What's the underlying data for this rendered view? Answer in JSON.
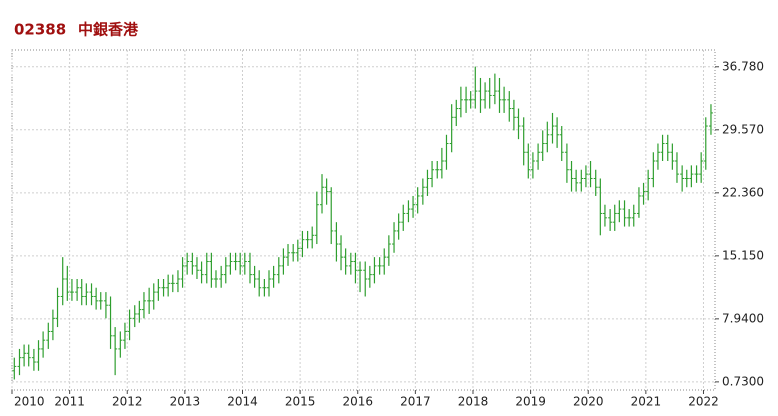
{
  "chart_data": {
    "type": "ohlc",
    "symbol": "02388",
    "name": "中銀香港",
    "color": "#2e9e2e",
    "grid": true,
    "xlim": [
      2010.0,
      2022.2
    ],
    "xticks": [
      2010,
      2011,
      2012,
      2013,
      2014,
      2015,
      2016,
      2017,
      2018,
      2019,
      2020,
      2021,
      2022
    ],
    "ylim": [
      -0.2,
      38.7
    ],
    "yticks": [
      {
        "value": 0.73,
        "label": "0.7300"
      },
      {
        "value": 7.94,
        "label": "7.9400"
      },
      {
        "value": 15.15,
        "label": "15.150"
      },
      {
        "value": 22.36,
        "label": "22.360"
      },
      {
        "value": 29.57,
        "label": "29.570"
      },
      {
        "value": 36.78,
        "label": "36.780"
      }
    ],
    "x": [
      2010.04,
      2010.13,
      2010.21,
      2010.29,
      2010.38,
      2010.46,
      2010.54,
      2010.63,
      2010.71,
      2010.79,
      2010.88,
      2010.96,
      2011.04,
      2011.13,
      2011.21,
      2011.29,
      2011.38,
      2011.46,
      2011.54,
      2011.63,
      2011.71,
      2011.79,
      2011.88,
      2011.96,
      2012.04,
      2012.13,
      2012.21,
      2012.29,
      2012.38,
      2012.46,
      2012.54,
      2012.63,
      2012.71,
      2012.79,
      2012.88,
      2012.96,
      2013.04,
      2013.13,
      2013.21,
      2013.29,
      2013.38,
      2013.46,
      2013.54,
      2013.63,
      2013.71,
      2013.79,
      2013.88,
      2013.96,
      2014.04,
      2014.13,
      2014.21,
      2014.29,
      2014.38,
      2014.46,
      2014.54,
      2014.63,
      2014.71,
      2014.79,
      2014.88,
      2014.96,
      2015.04,
      2015.13,
      2015.21,
      2015.29,
      2015.38,
      2015.46,
      2015.54,
      2015.63,
      2015.71,
      2015.79,
      2015.88,
      2015.96,
      2016.04,
      2016.13,
      2016.21,
      2016.29,
      2016.38,
      2016.46,
      2016.54,
      2016.63,
      2016.71,
      2016.79,
      2016.88,
      2016.96,
      2017.04,
      2017.13,
      2017.21,
      2017.29,
      2017.38,
      2017.46,
      2017.54,
      2017.63,
      2017.71,
      2017.79,
      2017.88,
      2017.96,
      2018.04,
      2018.13,
      2018.21,
      2018.29,
      2018.38,
      2018.46,
      2018.54,
      2018.63,
      2018.71,
      2018.79,
      2018.88,
      2018.96,
      2019.04,
      2019.13,
      2019.21,
      2019.29,
      2019.38,
      2019.46,
      2019.54,
      2019.63,
      2019.71,
      2019.79,
      2019.88,
      2019.96,
      2020.04,
      2020.13,
      2020.21,
      2020.29,
      2020.38,
      2020.46,
      2020.54,
      2020.63,
      2020.71,
      2020.79,
      2020.88,
      2020.96,
      2021.04,
      2021.13,
      2021.21,
      2021.29,
      2021.38,
      2021.46,
      2021.54,
      2021.63,
      2021.71,
      2021.79,
      2021.88,
      2021.96,
      2022.04,
      2022.13
    ],
    "open": [
      2.0,
      2.5,
      3.5,
      4.0,
      3.5,
      3.0,
      4.5,
      5.5,
      6.5,
      8.0,
      10.5,
      12.5,
      11.0,
      11.0,
      11.5,
      10.5,
      11.0,
      10.5,
      10.0,
      10.0,
      9.5,
      6.0,
      4.5,
      5.5,
      6.5,
      8.0,
      8.5,
      9.0,
      10.0,
      10.0,
      11.0,
      11.5,
      11.5,
      12.0,
      12.0,
      12.5,
      14.0,
      14.5,
      14.0,
      13.5,
      13.0,
      14.5,
      12.5,
      12.5,
      13.0,
      14.0,
      14.5,
      14.5,
      14.0,
      14.5,
      13.0,
      12.5,
      11.5,
      11.5,
      12.5,
      13.0,
      14.0,
      15.0,
      15.5,
      15.5,
      16.0,
      17.0,
      17.0,
      17.5,
      21.0,
      23.0,
      22.5,
      18.0,
      16.5,
      15.0,
      14.0,
      14.5,
      13.5,
      13.5,
      12.5,
      13.0,
      14.0,
      14.0,
      15.0,
      16.5,
      18.0,
      19.0,
      20.0,
      20.5,
      21.0,
      22.0,
      23.0,
      24.0,
      25.0,
      25.0,
      26.0,
      28.0,
      31.0,
      32.0,
      33.0,
      33.0,
      33.0,
      34.0,
      33.0,
      34.0,
      33.5,
      34.0,
      33.0,
      33.0,
      32.0,
      31.0,
      30.0,
      27.0,
      25.0,
      26.0,
      27.0,
      28.0,
      29.0,
      30.0,
      29.0,
      27.0,
      25.0,
      24.0,
      23.5,
      24.0,
      24.5,
      24.0,
      23.0,
      20.0,
      19.5,
      19.0,
      20.0,
      20.5,
      19.5,
      19.5,
      20.0,
      22.0,
      22.5,
      24.0,
      26.0,
      27.0,
      28.0,
      27.0,
      26.0,
      24.5,
      24.0,
      24.0,
      24.5,
      24.5,
      26.0,
      30.0
    ],
    "high": [
      3.5,
      4.5,
      5.0,
      5.0,
      4.5,
      5.5,
      6.5,
      7.5,
      9.0,
      11.5,
      15.0,
      14.0,
      12.5,
      12.5,
      12.5,
      12.0,
      12.0,
      11.5,
      11.0,
      11.0,
      10.5,
      7.0,
      6.5,
      7.5,
      9.0,
      9.5,
      10.0,
      11.0,
      11.5,
      12.0,
      12.5,
      12.5,
      13.0,
      13.0,
      13.5,
      15.0,
      15.5,
      15.5,
      15.0,
      14.5,
      15.5,
      15.5,
      13.5,
      14.0,
      15.0,
      15.5,
      15.5,
      15.5,
      15.5,
      15.5,
      14.0,
      13.5,
      12.5,
      13.5,
      14.0,
      15.0,
      16.0,
      16.5,
      16.5,
      17.0,
      18.0,
      18.0,
      18.5,
      22.5,
      24.5,
      24.0,
      23.0,
      19.0,
      17.5,
      16.0,
      15.5,
      15.5,
      14.5,
      14.5,
      14.0,
      15.0,
      15.0,
      16.0,
      17.5,
      19.0,
      20.0,
      21.0,
      21.5,
      22.0,
      23.0,
      24.0,
      25.0,
      26.0,
      26.0,
      27.5,
      29.0,
      32.5,
      33.0,
      34.5,
      34.5,
      34.0,
      36.8,
      35.5,
      35.0,
      35.5,
      36.0,
      35.5,
      34.5,
      34.0,
      33.0,
      32.0,
      31.0,
      28.0,
      27.0,
      28.0,
      29.5,
      30.5,
      31.5,
      31.0,
      30.0,
      28.0,
      26.0,
      25.0,
      25.0,
      25.5,
      26.0,
      25.0,
      24.0,
      21.0,
      20.5,
      21.0,
      21.5,
      21.5,
      20.5,
      21.0,
      23.0,
      23.5,
      25.0,
      27.0,
      28.0,
      29.0,
      29.0,
      28.0,
      27.0,
      25.5,
      25.0,
      25.5,
      25.5,
      27.0,
      31.0,
      32.5
    ],
    "low": [
      1.0,
      1.5,
      2.5,
      2.5,
      2.0,
      2.0,
      3.5,
      4.5,
      5.5,
      7.0,
      9.5,
      10.0,
      10.0,
      10.0,
      9.5,
      9.5,
      9.5,
      9.0,
      9.0,
      8.0,
      4.5,
      1.5,
      3.5,
      4.5,
      5.5,
      7.0,
      7.5,
      8.0,
      8.5,
      9.0,
      10.0,
      10.5,
      10.5,
      11.0,
      11.0,
      11.5,
      13.0,
      13.0,
      12.5,
      12.0,
      12.0,
      11.5,
      11.5,
      11.5,
      12.0,
      13.0,
      13.5,
      13.0,
      13.0,
      12.0,
      11.5,
      10.5,
      10.5,
      10.5,
      11.5,
      12.0,
      13.0,
      14.0,
      14.5,
      14.5,
      15.0,
      16.0,
      16.0,
      16.5,
      20.0,
      21.0,
      16.5,
      14.5,
      13.5,
      13.0,
      13.0,
      12.0,
      11.0,
      10.5,
      11.5,
      12.0,
      13.0,
      13.0,
      14.0,
      15.5,
      17.0,
      18.0,
      19.0,
      19.5,
      20.0,
      21.0,
      22.0,
      23.0,
      24.0,
      24.0,
      25.0,
      27.0,
      30.0,
      31.0,
      31.5,
      32.0,
      32.0,
      31.5,
      32.0,
      32.0,
      32.5,
      31.5,
      31.5,
      30.5,
      29.5,
      28.5,
      25.5,
      24.0,
      24.0,
      25.0,
      26.0,
      27.0,
      28.0,
      27.5,
      26.0,
      23.5,
      22.5,
      22.5,
      22.5,
      23.0,
      23.0,
      22.0,
      17.5,
      18.5,
      18.0,
      18.0,
      19.0,
      18.5,
      18.5,
      18.5,
      19.5,
      21.0,
      21.5,
      23.0,
      25.0,
      26.0,
      26.0,
      25.0,
      23.5,
      22.5,
      23.0,
      23.0,
      23.5,
      23.5,
      25.0,
      29.0
    ],
    "close": [
      2.5,
      3.5,
      4.0,
      3.5,
      3.0,
      4.5,
      5.5,
      6.5,
      8.0,
      10.5,
      12.5,
      11.0,
      11.0,
      11.5,
      10.5,
      11.0,
      10.5,
      10.0,
      10.0,
      9.5,
      6.0,
      4.5,
      5.5,
      6.5,
      8.0,
      8.5,
      9.0,
      10.0,
      10.0,
      11.0,
      11.5,
      11.5,
      12.0,
      12.0,
      12.5,
      14.0,
      14.5,
      14.0,
      13.5,
      13.0,
      14.5,
      12.5,
      12.5,
      13.0,
      14.0,
      14.5,
      14.5,
      14.0,
      14.5,
      13.0,
      12.5,
      11.5,
      11.5,
      12.5,
      13.0,
      14.0,
      15.0,
      15.5,
      15.5,
      16.0,
      17.0,
      17.0,
      17.5,
      21.0,
      23.0,
      22.5,
      18.0,
      16.5,
      15.0,
      14.0,
      14.5,
      13.5,
      13.5,
      12.5,
      13.0,
      14.0,
      14.0,
      15.0,
      16.5,
      18.0,
      19.0,
      20.0,
      20.5,
      21.0,
      22.0,
      23.0,
      24.0,
      25.0,
      25.0,
      26.0,
      28.0,
      31.0,
      32.0,
      33.0,
      33.0,
      33.0,
      34.0,
      33.0,
      34.0,
      33.5,
      34.0,
      33.0,
      33.0,
      32.0,
      31.0,
      30.0,
      27.0,
      25.0,
      26.0,
      27.0,
      28.0,
      29.0,
      30.0,
      29.0,
      27.0,
      25.0,
      24.0,
      23.5,
      24.0,
      24.5,
      24.0,
      23.0,
      20.0,
      19.5,
      19.0,
      20.0,
      20.5,
      19.5,
      19.5,
      20.0,
      22.0,
      22.5,
      24.0,
      26.0,
      27.0,
      28.0,
      27.0,
      26.0,
      24.5,
      24.0,
      24.0,
      24.5,
      24.5,
      26.0,
      30.0,
      31.5
    ]
  }
}
